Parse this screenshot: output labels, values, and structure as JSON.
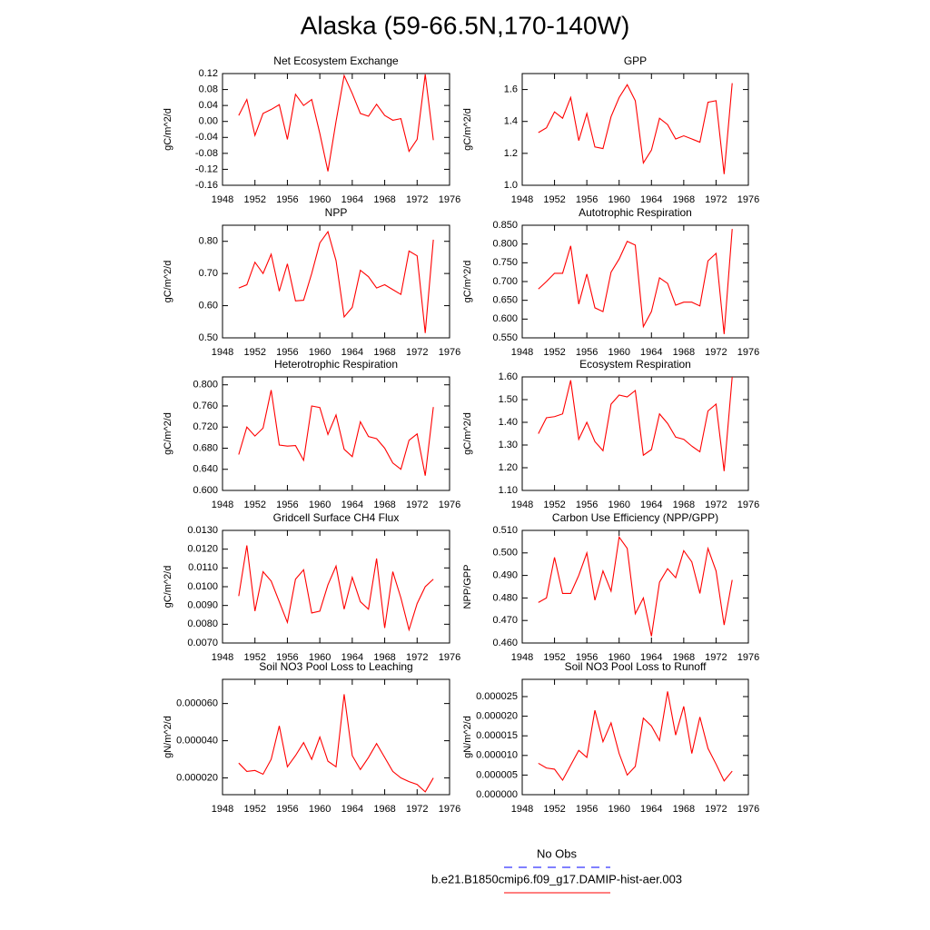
{
  "title": "Alaska (59-66.5N,170-140W)",
  "legend": [
    {
      "label": "No Obs",
      "color": "#0000ff",
      "dash": true
    },
    {
      "label": "b.e21.B1850cmip6.f09_g17.DAMIP-hist-aer.003",
      "color": "#ff0000",
      "dash": false
    }
  ],
  "chart_data": [
    {
      "type": "line",
      "title": "Net Ecosystem Exchange",
      "ylabel": "gC/m^2/d",
      "color": "#ff0000",
      "x": [
        1950,
        1951,
        1952,
        1953,
        1954,
        1955,
        1956,
        1957,
        1958,
        1959,
        1960,
        1961,
        1962,
        1963,
        1964,
        1965,
        1966,
        1967,
        1968,
        1969,
        1970,
        1971,
        1972,
        1973,
        1974
      ],
      "values": [
        0.015,
        0.055,
        -0.035,
        0.02,
        0.03,
        0.042,
        -0.045,
        0.068,
        0.04,
        0.055,
        -0.03,
        -0.125,
        0.0,
        0.115,
        0.07,
        0.02,
        0.013,
        0.043,
        0.015,
        0.003,
        0.007,
        -0.075,
        -0.045,
        0.118,
        -0.047
      ],
      "xlim": [
        1948,
        1976
      ],
      "xticks": [
        1948,
        1952,
        1956,
        1960,
        1964,
        1968,
        1972,
        1976
      ],
      "ylim": [
        -0.16,
        0.12
      ],
      "yticks": [
        -0.16,
        -0.12,
        -0.08,
        -0.04,
        {
          "value": 0,
          "label": "0.00"
        },
        0.04,
        0.08,
        0.12
      ]
    },
    {
      "type": "line",
      "title": "GPP",
      "ylabel": "gC/m^2/d",
      "color": "#ff0000",
      "x": [
        1950,
        1951,
        1952,
        1953,
        1954,
        1955,
        1956,
        1957,
        1958,
        1959,
        1960,
        1961,
        1962,
        1963,
        1964,
        1965,
        1966,
        1967,
        1968,
        1969,
        1970,
        1971,
        1972,
        1973,
        1974
      ],
      "values": [
        1.33,
        1.36,
        1.46,
        1.42,
        1.55,
        1.28,
        1.45,
        1.24,
        1.23,
        1.43,
        1.55,
        1.63,
        1.53,
        1.14,
        1.22,
        1.42,
        1.38,
        1.29,
        1.31,
        1.29,
        1.27,
        1.52,
        1.53,
        1.07,
        1.64
      ],
      "xlim": [
        1948,
        1976
      ],
      "xticks": [
        1948,
        1952,
        1956,
        1960,
        1964,
        1968,
        1972,
        1976
      ],
      "ylim": [
        1.0,
        1.7
      ],
      "yticks": [
        {
          "value": 1,
          "label": "1.0"
        },
        1.2,
        1.4,
        1.6
      ]
    },
    {
      "type": "line",
      "title": "NPP",
      "ylabel": "gC/m^2/d",
      "color": "#ff0000",
      "x": [
        1950,
        1951,
        1952,
        1953,
        1954,
        1955,
        1956,
        1957,
        1958,
        1959,
        1960,
        1961,
        1962,
        1963,
        1964,
        1965,
        1966,
        1967,
        1968,
        1969,
        1970,
        1971,
        1972,
        1973,
        1974
      ],
      "values": [
        0.655,
        0.665,
        0.735,
        0.7,
        0.76,
        0.645,
        0.73,
        0.615,
        0.617,
        0.7,
        0.795,
        0.83,
        0.74,
        0.565,
        0.595,
        0.71,
        0.69,
        0.655,
        0.665,
        0.65,
        0.635,
        0.77,
        0.755,
        0.515,
        0.805
      ],
      "xlim": [
        1948,
        1976
      ],
      "xticks": [
        1948,
        1952,
        1956,
        1960,
        1964,
        1968,
        1972,
        1976
      ],
      "ylim": [
        0.5,
        0.85
      ],
      "yticks": [
        {
          "value": 0.5,
          "label": "0.50"
        },
        {
          "value": 0.6,
          "label": "0.60"
        },
        {
          "value": 0.7,
          "label": "0.70"
        },
        {
          "value": 0.8,
          "label": "0.80"
        }
      ]
    },
    {
      "type": "line",
      "title": "Autotrophic Respiration",
      "ylabel": "gC/m^2/d",
      "color": "#ff0000",
      "x": [
        1950,
        1951,
        1952,
        1953,
        1954,
        1955,
        1956,
        1957,
        1958,
        1959,
        1960,
        1961,
        1962,
        1963,
        1964,
        1965,
        1966,
        1967,
        1968,
        1969,
        1970,
        1971,
        1972,
        1973,
        1974
      ],
      "values": [
        0.68,
        0.7,
        0.722,
        0.722,
        0.795,
        0.64,
        0.72,
        0.63,
        0.62,
        0.725,
        0.76,
        0.807,
        0.797,
        0.58,
        0.62,
        0.71,
        0.695,
        0.637,
        0.645,
        0.645,
        0.635,
        0.755,
        0.775,
        0.56,
        0.84
      ],
      "xlim": [
        1948,
        1976
      ],
      "xticks": [
        1948,
        1952,
        1956,
        1960,
        1964,
        1968,
        1972,
        1976
      ],
      "ylim": [
        0.55,
        0.85
      ],
      "yticks": [
        {
          "value": 0.55,
          "label": "0.550"
        },
        {
          "value": 0.6,
          "label": "0.600"
        },
        {
          "value": 0.65,
          "label": "0.650"
        },
        {
          "value": 0.7,
          "label": "0.700"
        },
        {
          "value": 0.75,
          "label": "0.750"
        },
        {
          "value": 0.8,
          "label": "0.800"
        },
        {
          "value": 0.85,
          "label": "0.850"
        }
      ]
    },
    {
      "type": "line",
      "title": "Heterotrophic Respiration",
      "ylabel": "gC/m^2/d",
      "color": "#ff0000",
      "x": [
        1950,
        1951,
        1952,
        1953,
        1954,
        1955,
        1956,
        1957,
        1958,
        1959,
        1960,
        1961,
        1962,
        1963,
        1964,
        1965,
        1966,
        1967,
        1968,
        1969,
        1970,
        1971,
        1972,
        1973,
        1974
      ],
      "values": [
        0.668,
        0.72,
        0.703,
        0.718,
        0.79,
        0.686,
        0.684,
        0.685,
        0.657,
        0.76,
        0.757,
        0.706,
        0.743,
        0.678,
        0.664,
        0.73,
        0.702,
        0.698,
        0.68,
        0.652,
        0.64,
        0.695,
        0.707,
        0.628,
        0.758
      ],
      "xlim": [
        1948,
        1976
      ],
      "xticks": [
        1948,
        1952,
        1956,
        1960,
        1964,
        1968,
        1972,
        1976
      ],
      "ylim": [
        0.6,
        0.815
      ],
      "yticks": [
        {
          "value": 0.6,
          "label": "0.600"
        },
        {
          "value": 0.64,
          "label": "0.640"
        },
        {
          "value": 0.68,
          "label": "0.680"
        },
        {
          "value": 0.72,
          "label": "0.720"
        },
        {
          "value": 0.76,
          "label": "0.760"
        },
        {
          "value": 0.8,
          "label": "0.800"
        }
      ]
    },
    {
      "type": "line",
      "title": "Ecosystem Respiration",
      "ylabel": "gC/m^2/d",
      "color": "#ff0000",
      "x": [
        1950,
        1951,
        1952,
        1953,
        1954,
        1955,
        1956,
        1957,
        1958,
        1959,
        1960,
        1961,
        1962,
        1963,
        1964,
        1965,
        1966,
        1967,
        1968,
        1969,
        1970,
        1971,
        1972,
        1973,
        1974
      ],
      "values": [
        1.35,
        1.42,
        1.425,
        1.437,
        1.585,
        1.325,
        1.4,
        1.315,
        1.275,
        1.48,
        1.52,
        1.512,
        1.54,
        1.255,
        1.28,
        1.437,
        1.395,
        1.335,
        1.325,
        1.295,
        1.27,
        1.45,
        1.48,
        1.185,
        1.6
      ],
      "xlim": [
        1948,
        1976
      ],
      "xticks": [
        1948,
        1952,
        1956,
        1960,
        1964,
        1968,
        1972,
        1976
      ],
      "ylim": [
        1.1,
        1.6
      ],
      "yticks": [
        {
          "value": 1.1,
          "label": "1.10"
        },
        {
          "value": 1.2,
          "label": "1.20"
        },
        {
          "value": 1.3,
          "label": "1.30"
        },
        {
          "value": 1.4,
          "label": "1.40"
        },
        {
          "value": 1.5,
          "label": "1.50"
        },
        {
          "value": 1.6,
          "label": "1.60"
        }
      ]
    },
    {
      "type": "line",
      "title": "Gridcell Surface CH4 Flux",
      "ylabel": "gC/m^2/d",
      "color": "#ff0000",
      "x": [
        1950,
        1951,
        1952,
        1953,
        1954,
        1955,
        1956,
        1957,
        1958,
        1959,
        1960,
        1961,
        1962,
        1963,
        1964,
        1965,
        1966,
        1967,
        1968,
        1969,
        1970,
        1971,
        1972,
        1973,
        1974
      ],
      "values": [
        0.0095,
        0.0122,
        0.0087,
        0.0108,
        0.0103,
        0.0092,
        0.0081,
        0.0104,
        0.0109,
        0.0086,
        0.0087,
        0.0101,
        0.0111,
        0.0088,
        0.0105,
        0.0092,
        0.0088,
        0.0115,
        0.0078,
        0.0108,
        0.0094,
        0.0077,
        0.0091,
        0.01,
        0.0104
      ],
      "xlim": [
        1948,
        1976
      ],
      "xticks": [
        1948,
        1952,
        1956,
        1960,
        1964,
        1968,
        1972,
        1976
      ],
      "ylim": [
        0.007,
        0.013
      ],
      "yticks": [
        {
          "value": 0.007,
          "label": "0.0070"
        },
        {
          "value": 0.008,
          "label": "0.0080"
        },
        {
          "value": 0.009,
          "label": "0.0090"
        },
        {
          "value": 0.01,
          "label": "0.0100"
        },
        {
          "value": 0.011,
          "label": "0.0110"
        },
        {
          "value": 0.012,
          "label": "0.0120"
        },
        {
          "value": 0.013,
          "label": "0.0130"
        }
      ]
    },
    {
      "type": "line",
      "title": "Carbon Use Efficiency (NPP/GPP)",
      "ylabel": "NPP/GPP",
      "color": "#ff0000",
      "x": [
        1950,
        1951,
        1952,
        1953,
        1954,
        1955,
        1956,
        1957,
        1958,
        1959,
        1960,
        1961,
        1962,
        1963,
        1964,
        1965,
        1966,
        1967,
        1968,
        1969,
        1970,
        1971,
        1972,
        1973,
        1974
      ],
      "values": [
        0.478,
        0.48,
        0.498,
        0.482,
        0.482,
        0.49,
        0.5,
        0.479,
        0.492,
        0.483,
        0.507,
        0.502,
        0.473,
        0.48,
        0.463,
        0.487,
        0.493,
        0.489,
        0.501,
        0.496,
        0.482,
        0.502,
        0.492,
        0.468,
        0.488
      ],
      "xlim": [
        1948,
        1976
      ],
      "xticks": [
        1948,
        1952,
        1956,
        1960,
        1964,
        1968,
        1972,
        1976
      ],
      "ylim": [
        0.46,
        0.51
      ],
      "yticks": [
        {
          "value": 0.46,
          "label": "0.460"
        },
        {
          "value": 0.47,
          "label": "0.470"
        },
        {
          "value": 0.48,
          "label": "0.480"
        },
        {
          "value": 0.49,
          "label": "0.490"
        },
        {
          "value": 0.5,
          "label": "0.500"
        },
        {
          "value": 0.51,
          "label": "0.510"
        }
      ]
    },
    {
      "type": "line",
      "title": "Soil NO3 Pool Loss to Leaching",
      "ylabel": "gN/m^2/d",
      "color": "#ff0000",
      "x": [
        1950,
        1951,
        1952,
        1953,
        1954,
        1955,
        1956,
        1957,
        1958,
        1959,
        1960,
        1961,
        1962,
        1963,
        1964,
        1965,
        1966,
        1967,
        1968,
        1969,
        1970,
        1971,
        1972,
        1973,
        1974
      ],
      "values": [
        2.8e-05,
        2.35e-05,
        2.4e-05,
        2.2e-05,
        3e-05,
        4.8e-05,
        2.6e-05,
        3.2e-05,
        3.9e-05,
        3e-05,
        4.2e-05,
        2.9e-05,
        2.6e-05,
        6.5e-05,
        3.2e-05,
        2.45e-05,
        3.1e-05,
        3.85e-05,
        3.1e-05,
        2.35e-05,
        2e-05,
        1.8e-05,
        1.65e-05,
        1.25e-05,
        2e-05
      ],
      "xlim": [
        1948,
        1976
      ],
      "xticks": [
        1948,
        1952,
        1956,
        1960,
        1964,
        1968,
        1972,
        1976
      ],
      "ylim": [
        1.1e-05,
        7.3e-05
      ],
      "yticks": [
        {
          "value": 2e-05,
          "label": "0.000020"
        },
        {
          "value": 4e-05,
          "label": "0.000040"
        },
        {
          "value": 6e-05,
          "label": "0.000060"
        }
      ]
    },
    {
      "type": "line",
      "title": "Soil NO3 Pool Loss to Runoff",
      "ylabel": "gN/m^2/d",
      "color": "#ff0000",
      "x": [
        1950,
        1951,
        1952,
        1953,
        1954,
        1955,
        1956,
        1957,
        1958,
        1959,
        1960,
        1961,
        1962,
        1963,
        1964,
        1965,
        1966,
        1967,
        1968,
        1969,
        1970,
        1971,
        1972,
        1973,
        1974
      ],
      "values": [
        8e-06,
        6.8e-06,
        6.5e-06,
        3.7e-06,
        7.5e-06,
        1.13e-05,
        9.5e-06,
        2.15e-05,
        1.35e-05,
        1.83e-05,
        1.05e-05,
        5e-06,
        7.2e-06,
        1.95e-05,
        1.75e-05,
        1.38e-05,
        2.63e-05,
        1.52e-05,
        2.25e-05,
        1.05e-05,
        1.98e-05,
        1.18e-05,
        7.8e-06,
        3.5e-06,
        6e-06
      ],
      "xlim": [
        1948,
        1976
      ],
      "xticks": [
        1948,
        1952,
        1956,
        1960,
        1964,
        1968,
        1972,
        1976
      ],
      "ylim": [
        0,
        2.94e-05
      ],
      "yticks": [
        {
          "value": 0,
          "label": "0.000000"
        },
        {
          "value": 5e-06,
          "label": "0.000005"
        },
        {
          "value": 1e-05,
          "label": "0.000010"
        },
        {
          "value": 1.5e-05,
          "label": "0.000015"
        },
        {
          "value": 2e-05,
          "label": "0.000020"
        },
        {
          "value": 2.5e-05,
          "label": "0.000025"
        }
      ]
    }
  ]
}
